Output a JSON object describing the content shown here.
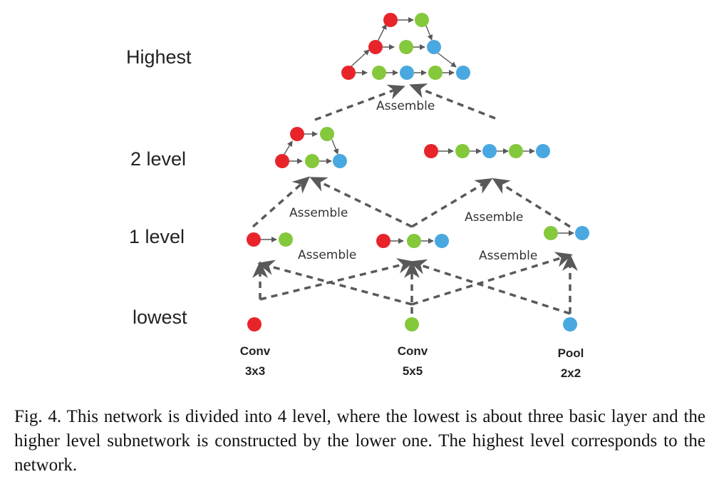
{
  "levels": {
    "highest": "Highest",
    "level2": "2 level",
    "level1": "1 level",
    "lowest": "lowest"
  },
  "assemble": {
    "top": "Assemble",
    "mid_left": "Assemble",
    "mid_right": "Assemble",
    "low_left": "Assemble",
    "low_right": "Assemble"
  },
  "basic_layers": [
    {
      "line1": "Conv",
      "line2": "3x3",
      "color": "#e8242b"
    },
    {
      "line1": "Conv",
      "line2": "5x5",
      "color": "#84c83c"
    },
    {
      "line1": "Pool",
      "line2": "2x2",
      "color": "#4aa8e0"
    }
  ],
  "colors": {
    "red": "#e8242b",
    "green": "#84c83c",
    "blue": "#4aa8e0",
    "line": "#595959"
  },
  "caption": "Fig. 4.  This network is divided into 4 level, where the lowest is about three basic layer and the higher level subnetwork is constructed by the lower one. The highest level corresponds to the network."
}
